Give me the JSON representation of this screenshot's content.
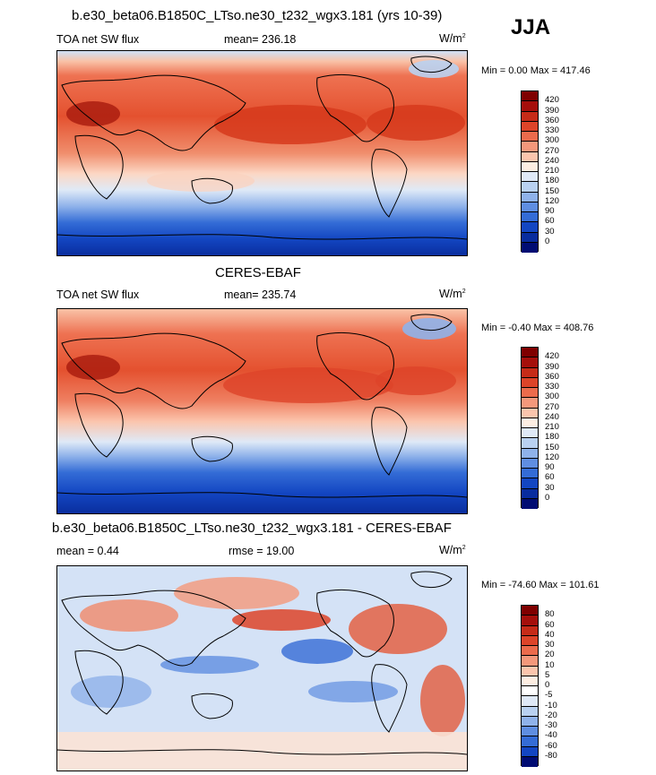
{
  "season": "JJA",
  "panels": [
    {
      "title": "b.e30_beta06.B1850C_LTso.ne30_t232_wgx3.181 (yrs 10-39)",
      "left_text": "TOA net SW flux",
      "center_text": "mean= 236.18",
      "units": "W/m",
      "units_exp": "2",
      "minmax": "Min =   0.00 Max = 417.46",
      "levels": [
        "420",
        "390",
        "360",
        "330",
        "300",
        "270",
        "240",
        "210",
        "180",
        "150",
        "120",
        "90",
        "60",
        "30",
        "0"
      ],
      "colors": [
        "#7f0000",
        "#a50f0b",
        "#c62b18",
        "#dd4429",
        "#ec6b4c",
        "#f4987b",
        "#fbc5ad",
        "#fdeee2",
        "#dfe9f7",
        "#b9d1f1",
        "#8fb2ea",
        "#5f8ee1",
        "#346cd6",
        "#1346c2",
        "#082c9e",
        "#000c73"
      ]
    },
    {
      "title": "CERES-EBAF",
      "left_text": "TOA net SW flux",
      "center_text": "mean= 235.74",
      "units": "W/m",
      "units_exp": "2",
      "minmax": "Min =  -0.40 Max = 408.76",
      "levels": [
        "420",
        "390",
        "360",
        "330",
        "300",
        "270",
        "240",
        "210",
        "180",
        "150",
        "120",
        "90",
        "60",
        "30",
        "0"
      ],
      "colors": [
        "#7f0000",
        "#a50f0b",
        "#c62b18",
        "#dd4429",
        "#ec6b4c",
        "#f4987b",
        "#fbc5ad",
        "#fdeee2",
        "#dfe9f7",
        "#b9d1f1",
        "#8fb2ea",
        "#5f8ee1",
        "#346cd6",
        "#1346c2",
        "#082c9e",
        "#000c73"
      ]
    },
    {
      "title": "b.e30_beta06.B1850C_LTso.ne30_t232_wgx3.181 - CERES-EBAF",
      "left_text": "mean =   0.44",
      "center_text": "rmse =  19.00",
      "units": "W/m",
      "units_exp": "2",
      "minmax": "Min = -74.60 Max = 101.61",
      "levels": [
        "80",
        "60",
        "40",
        "30",
        "20",
        "10",
        "5",
        "0",
        "-5",
        "-10",
        "-20",
        "-30",
        "-40",
        "-60",
        "-80"
      ],
      "colors": [
        "#7f0000",
        "#a50f0b",
        "#c62b18",
        "#dd4429",
        "#ec6b4c",
        "#f4987b",
        "#fbc5ad",
        "#fdeee2",
        "#ffffff",
        "#dfe9f7",
        "#b9d1f1",
        "#8fb2ea",
        "#5f8ee1",
        "#346cd6",
        "#1346c2",
        "#000c73"
      ]
    }
  ]
}
